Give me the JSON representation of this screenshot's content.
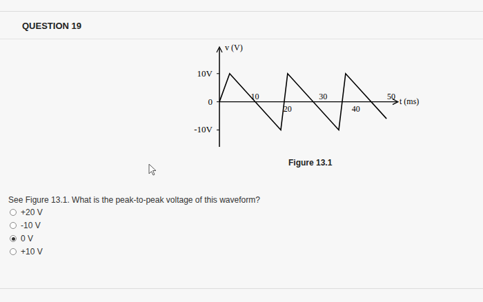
{
  "header": {
    "title": "QUESTION 19"
  },
  "chart_data": {
    "type": "line",
    "x": [
      0,
      3,
      18,
      20,
      35,
      37,
      49
    ],
    "values": [
      0,
      10,
      -10,
      10,
      -10,
      10,
      -6
    ],
    "color": "#000000",
    "xlim": [
      0,
      52
    ],
    "xticks": [
      10,
      20,
      30,
      40,
      50
    ],
    "ylim": [
      -16,
      19
    ],
    "yticks": [
      {
        "value": -10,
        "label": "-10V"
      },
      0,
      {
        "value": 10,
        "label": "10V"
      }
    ],
    "x_label": "t (ms)",
    "y_label": "v (V)",
    "grid": false
  },
  "figure_caption": "Figure 13.1",
  "question": {
    "text": "See Figure 13.1. What is the peak-to-peak voltage of this waveform?",
    "options": [
      "+20 V",
      "-10 V",
      "0 V",
      "+10 V"
    ],
    "selected": 2
  }
}
